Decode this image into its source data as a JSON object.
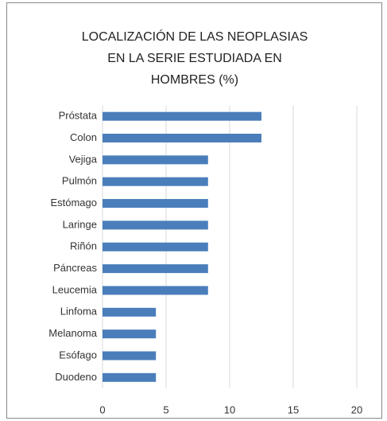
{
  "chart_data": {
    "type": "bar",
    "orientation": "horizontal",
    "title": [
      "LOCALIZACIÓN DE LAS NEOPLASIAS",
      "EN LA SERIE ESTUDIADA EN",
      "HOMBRES (%)"
    ],
    "categories": [
      "Próstata",
      "Colon",
      "Vejiga",
      "Pulmón",
      "Estómago",
      "Laringe",
      "Riñón",
      "Páncreas",
      "Leucemia",
      "Linfoma",
      "Melanoma",
      "Esófago",
      "Duodeno"
    ],
    "values": [
      12.5,
      12.5,
      8.3,
      8.3,
      8.3,
      8.3,
      8.3,
      8.3,
      8.3,
      4.2,
      4.2,
      4.2,
      4.2
    ],
    "color": "#4a7ebb",
    "xlim": [
      0,
      20
    ],
    "xticks": [
      0,
      5,
      10,
      15,
      20
    ],
    "grid": true
  }
}
